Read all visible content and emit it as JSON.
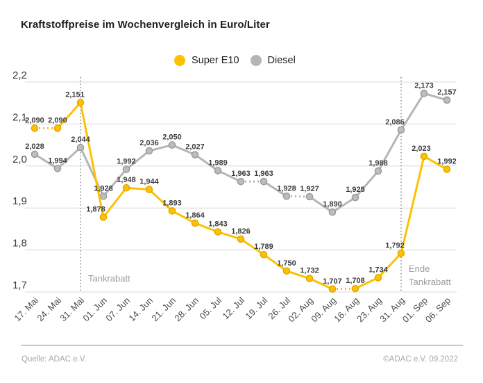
{
  "title": "Kraftstoffpreise im Wochenvergleich in Euro/Liter",
  "legend": {
    "items": [
      {
        "label": "Super E10",
        "color": "#fcc200"
      },
      {
        "label": "Diesel",
        "color": "#b5b5b7"
      }
    ]
  },
  "footer": {
    "source": "Quelle: ADAC e.V.",
    "copyright": "©ADAC e.V.  09.2022"
  },
  "chart_data": {
    "type": "line",
    "title": "Kraftstoffpreise im Wochenvergleich in Euro/Liter",
    "unit": "Euro/Liter",
    "decimal_separator": ",",
    "grid": true,
    "legend_position": "top",
    "ylim": [
      1.7,
      2.2
    ],
    "yticks": [
      2.2,
      2.1,
      2.0,
      1.9,
      1.8,
      1.7
    ],
    "ytick_labels": [
      "2,2",
      "2,1",
      "2,0",
      "1,9",
      "1,8",
      "1,7"
    ],
    "categories": [
      "17. Mai",
      "24. Mai",
      "31. Mai",
      "01. Jun",
      "07. Jun",
      "14. Jun",
      "21. Jun",
      "28. Jun",
      "05. Jul",
      "12. Jul",
      "19. Jul",
      "26. Jul",
      "02. Aug",
      "09. Aug",
      "16. Aug",
      "23. Aug",
      "31. Aug",
      "01. Sep",
      "06. Sep"
    ],
    "series": [
      {
        "name": "Super E10",
        "color": "#fcc200",
        "marker_stroke": "#e2a602",
        "values": [
          2.09,
          2.09,
          2.151,
          1.878,
          1.948,
          1.944,
          1.893,
          1.864,
          1.843,
          1.826,
          1.789,
          1.75,
          1.732,
          1.707,
          1.708,
          1.734,
          1.792,
          2.023,
          1.992
        ],
        "value_labels": [
          "2,090",
          "2,090",
          "2,151",
          "1,878",
          "1,948",
          "1,944",
          "1,893",
          "1,864",
          "1,843",
          "1,826",
          "1,789",
          "1,750",
          "1,732",
          "1,707",
          "1,708",
          "1,734",
          "1,792",
          "2,023",
          "1,992"
        ]
      },
      {
        "name": "Diesel",
        "color": "#b5b5b7",
        "marker_stroke": "#99999c",
        "marker_fill": "#bdbdbf",
        "values": [
          2.028,
          1.994,
          2.044,
          1.928,
          1.992,
          2.036,
          2.05,
          2.027,
          1.989,
          1.963,
          1.963,
          1.928,
          1.927,
          1.89,
          1.925,
          1.988,
          2.086,
          2.173,
          2.157
        ],
        "value_labels": [
          "2,028",
          "1,994",
          "2,044",
          "1,928",
          "1,992",
          "2,036",
          "2,050",
          "2,027",
          "1,989",
          "1,963",
          "1,963",
          "1,928",
          "1,927",
          "1,890",
          "1,925",
          "1,988",
          "2,086",
          "2,173",
          "2,157"
        ]
      }
    ],
    "vlines": [
      {
        "category": "31. Mai",
        "label_lines": [
          "Tankrabatt"
        ]
      },
      {
        "category": "31. Aug",
        "label_lines": [
          "Ende",
          "Tankrabatt"
        ]
      }
    ]
  }
}
